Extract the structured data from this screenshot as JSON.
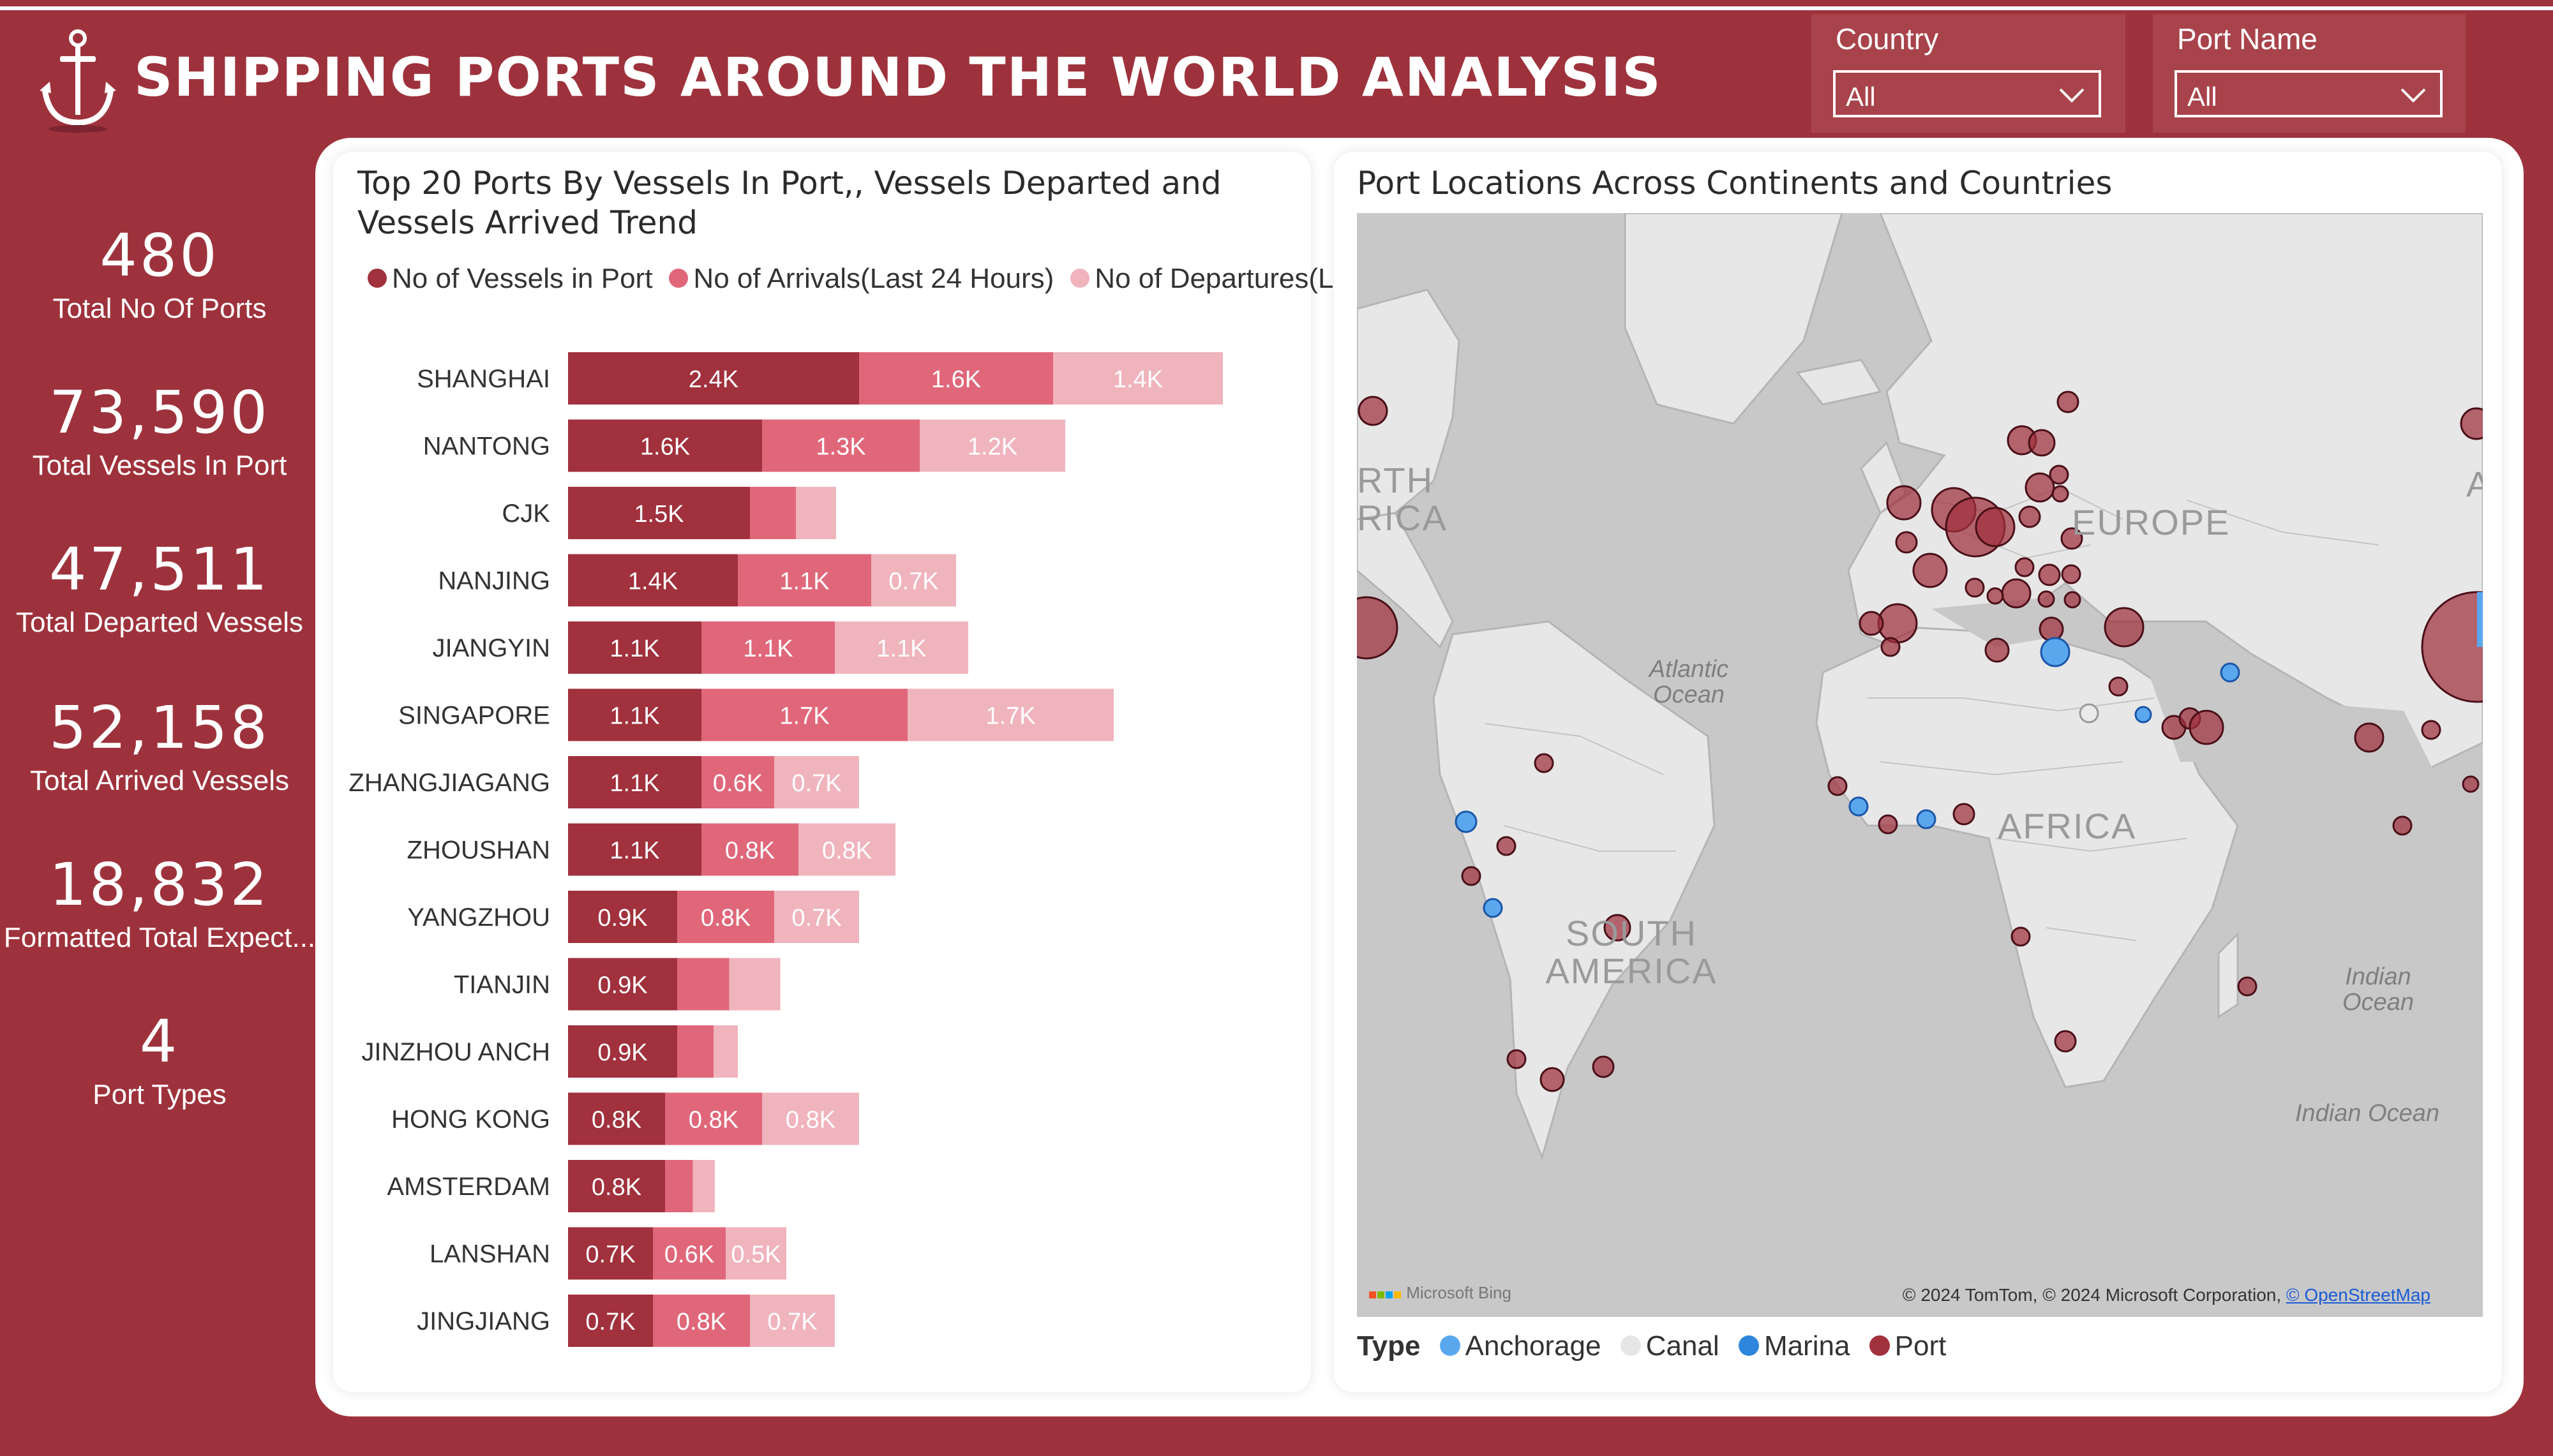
{
  "header": {
    "title": "SHIPPING PORTS AROUND THE WORLD ANALYSIS",
    "logo_icon": "anchor-icon"
  },
  "filters": {
    "country": {
      "label": "Country",
      "value": "All"
    },
    "port_name": {
      "label": "Port Name",
      "value": "All"
    }
  },
  "kpis": [
    {
      "value": "480",
      "label": "Total No Of Ports"
    },
    {
      "value": "73,590",
      "label": "Total Vessels In Port"
    },
    {
      "value": "47,511",
      "label": "Total Departed Vessels"
    },
    {
      "value": "52,158",
      "label": "Total Arrived Vessels"
    },
    {
      "value": "18,832",
      "label": "Formatted Total Expect..."
    },
    {
      "value": "4",
      "label": "Port Types"
    }
  ],
  "colors": {
    "background": "#9e323c",
    "vessels_in_port": "#a0313d",
    "arrivals": "#e0677a",
    "departures": "#f0b4bd",
    "anchorage": "#5aa7ee",
    "canal": "#e6e6e6",
    "marina": "#2f86dd",
    "port": "#a0313d"
  },
  "bar_chart": {
    "title": "Top 20 Ports By Vessels In Port,, Vessels Departed and Vessels Arrived Trend",
    "legend": [
      {
        "label": "No of Vessels in Port",
        "color": "#a0313d"
      },
      {
        "label": "No of Arrivals(Last 24 Hours)",
        "color": "#e0677a"
      },
      {
        "label": "No of Departures(L...",
        "color": "#f0b4bd"
      }
    ]
  },
  "chart_data": {
    "type": "bar",
    "orientation": "horizontal",
    "stacked": true,
    "title": "Top 20 Ports By Vessels In Port,, Vessels Departed and Vessels Arrived Trend",
    "categories": [
      "SHANGHAI",
      "NANTONG",
      "CJK",
      "NANJING",
      "JIANGYIN",
      "SINGAPORE",
      "ZHANGJIAGANG",
      "ZHOUSHAN",
      "YANGZHOU",
      "TIANJIN",
      "JINZHOU ANCH",
      "HONG KONG",
      "AMSTERDAM",
      "LANSHAN",
      "JINGJIANG"
    ],
    "series": [
      {
        "name": "No of Vessels in Port",
        "values": [
          2400,
          1600,
          1500,
          1400,
          1100,
          1100,
          1100,
          1100,
          900,
          900,
          900,
          800,
          800,
          700,
          700
        ],
        "labels": [
          "2.4K",
          "1.6K",
          "1.5K",
          "1.4K",
          "1.1K",
          "1.1K",
          "1.1K",
          "1.1K",
          "0.9K",
          "0.9K",
          "0.9K",
          "0.8K",
          "0.8K",
          "0.7K",
          "0.7K"
        ]
      },
      {
        "name": "No of Arrivals(Last 24 Hours)",
        "values": [
          1600,
          1300,
          380,
          1100,
          1100,
          1700,
          600,
          800,
          800,
          430,
          300,
          800,
          230,
          600,
          800
        ],
        "labels": [
          "1.6K",
          "1.3K",
          "",
          "1.1K",
          "1.1K",
          "1.7K",
          "0.6K",
          "0.8K",
          "0.8K",
          "",
          "",
          "0.8K",
          "",
          "0.6K",
          "0.8K"
        ]
      },
      {
        "name": "No of Departures(L...",
        "values": [
          1400,
          1200,
          330,
          700,
          1100,
          1700,
          700,
          800,
          700,
          420,
          200,
          800,
          180,
          500,
          700
        ],
        "labels": [
          "1.4K",
          "1.2K",
          "",
          "0.7K",
          "1.1K",
          "1.7K",
          "0.7K",
          "0.8K",
          "0.7K",
          "",
          "",
          "0.8K",
          "",
          "0.5K",
          "0.7K"
        ]
      }
    ]
  },
  "map": {
    "title": "Port Locations Across Continents and Countries",
    "labels": {
      "north_america": "RTH\nRICA",
      "europe": "EUROPE",
      "africa": "AFRICA",
      "south_america": "SOUTH\nAMERICA",
      "asia_edge": "A",
      "atlantic": "Atlantic\nOcean",
      "indian1": "Indian\nOcean",
      "indian2": "Indian Ocean"
    },
    "attribution": "Microsoft Bing",
    "copyright": "© 2024 TomTom, © 2024 Microsoft Corporation, ",
    "copyright_link": "© OpenStreetMap",
    "legend": {
      "title": "Type",
      "items": [
        {
          "label": "Anchorage",
          "color": "#5aa7ee"
        },
        {
          "label": "Canal",
          "color": "#e6e6e6"
        },
        {
          "label": "Marina",
          "color": "#2f86dd"
        },
        {
          "label": "Port",
          "color": "#a0313d"
        }
      ]
    }
  }
}
